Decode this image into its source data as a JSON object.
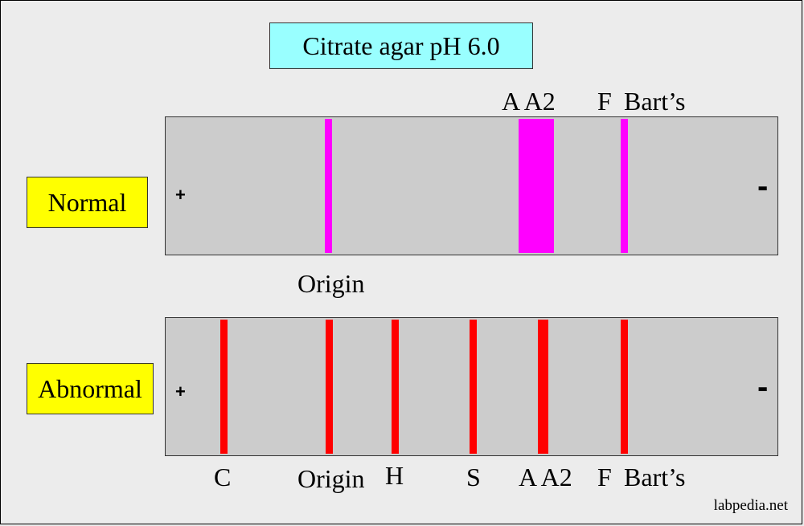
{
  "title": "Citrate agar pH 6.0",
  "normal": {
    "label": "Normal",
    "band_color": "#ff00ff",
    "plus": "+",
    "minus": "-",
    "top_labels": {
      "a_a2": "A A2",
      "f": "F",
      "barts": "Bart’s"
    },
    "origin_label": "Origin"
  },
  "abnormal": {
    "label": "Abnormal",
    "band_color": "#ff0000",
    "plus": "+",
    "minus": "-",
    "bottom_labels": {
      "c": "C",
      "origin": "Origin",
      "h": "H",
      "s": "S",
      "a_a2": "A A2",
      "f": "F",
      "barts": "Bart’s"
    }
  },
  "colors": {
    "background": "#ececec",
    "lane": "#cccccc",
    "title_box": "#99ffff",
    "label_box": "#ffff00"
  },
  "credit": "labpedia.net"
}
